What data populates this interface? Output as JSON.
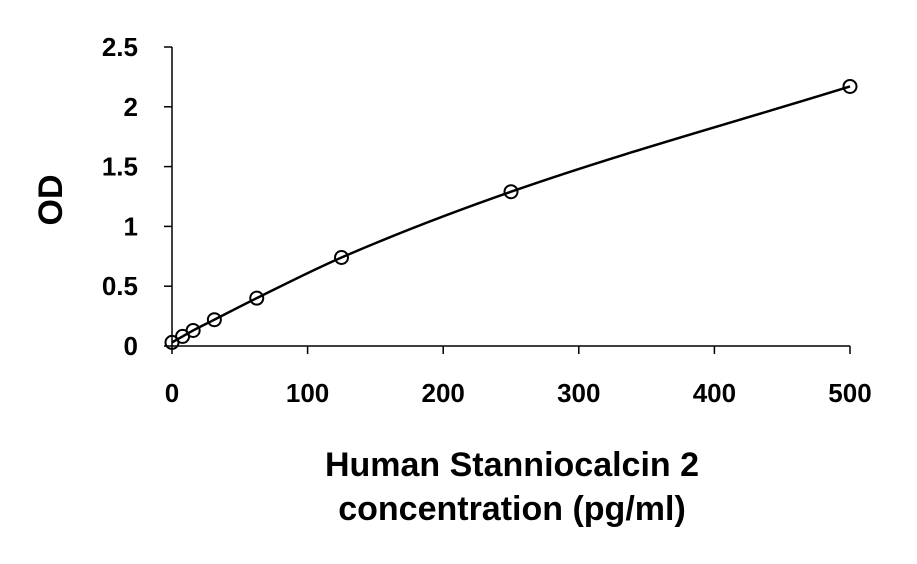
{
  "chart_data": {
    "type": "scatter",
    "title": "",
    "xlabel_lines": [
      "Human Stanniocalcin 2",
      "concentration (pg/ml)"
    ],
    "ylabel": "OD",
    "xlim": [
      0,
      500
    ],
    "ylim": [
      0,
      2.5
    ],
    "x_ticks": [
      0,
      100,
      200,
      300,
      400,
      500
    ],
    "y_ticks": [
      0,
      0.5,
      1,
      1.5,
      2,
      2.5
    ],
    "x_tick_labels": [
      "0",
      "100",
      "200",
      "300",
      "400",
      "500"
    ],
    "y_tick_labels": [
      "0",
      "0.5",
      "1",
      "1.5",
      "2",
      "2.5"
    ],
    "grid": false,
    "legend": "none",
    "series": [
      {
        "marker": "open-circle",
        "fit_line": "smooth curve",
        "x": [
          0,
          7.8,
          15.6,
          31.25,
          62.5,
          125,
          250,
          500
        ],
        "y": [
          0.03,
          0.08,
          0.13,
          0.22,
          0.4,
          0.74,
          1.29,
          2.17
        ]
      }
    ],
    "colors": {
      "line": "#000000",
      "marker_stroke": "#000000",
      "background": "#ffffff"
    }
  }
}
